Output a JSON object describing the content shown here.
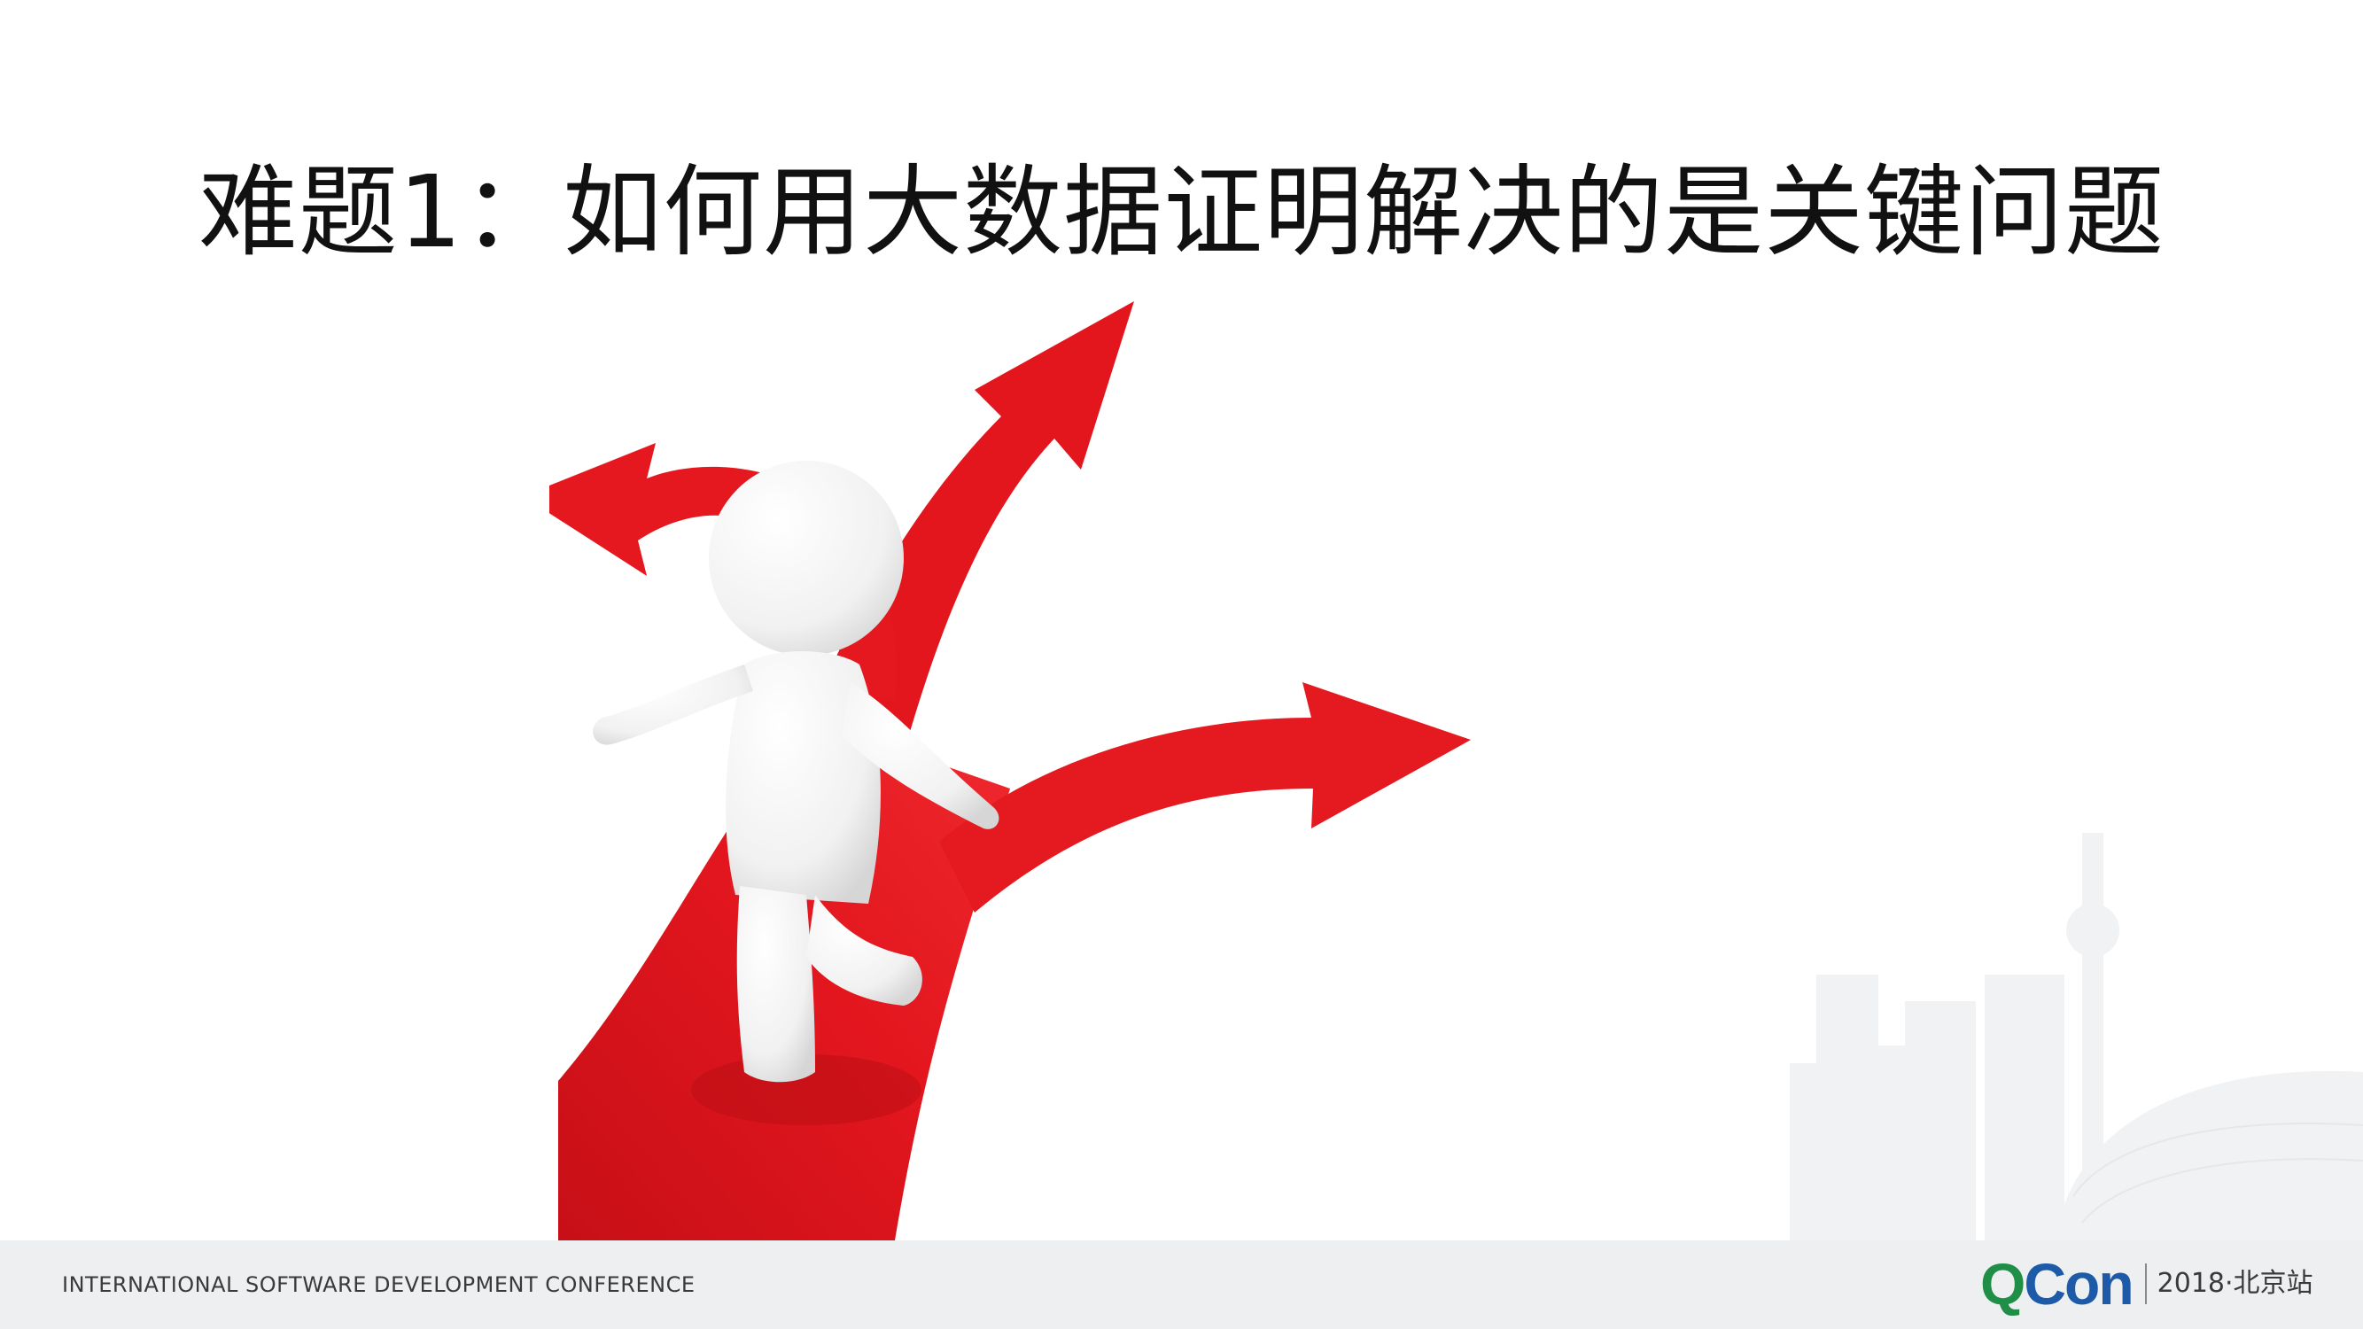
{
  "slide": {
    "title": "难题1：如何用大数据证明解决的是关键问题"
  },
  "footer": {
    "conference_name": "INTERNATIONAL SOFTWARE DEVELOPMENT CONFERENCE",
    "logo_q": "Q",
    "logo_con": "Con",
    "edition": "2018·北京站"
  },
  "colors": {
    "arrow_red": "#e0141c",
    "logo_green": "#1f8f47",
    "logo_blue": "#1d5aa8",
    "footer_bg": "#eeeff1"
  },
  "icons": {
    "illustration": "person-at-crossroads-arrows",
    "background": "city-skyline-decoration"
  }
}
